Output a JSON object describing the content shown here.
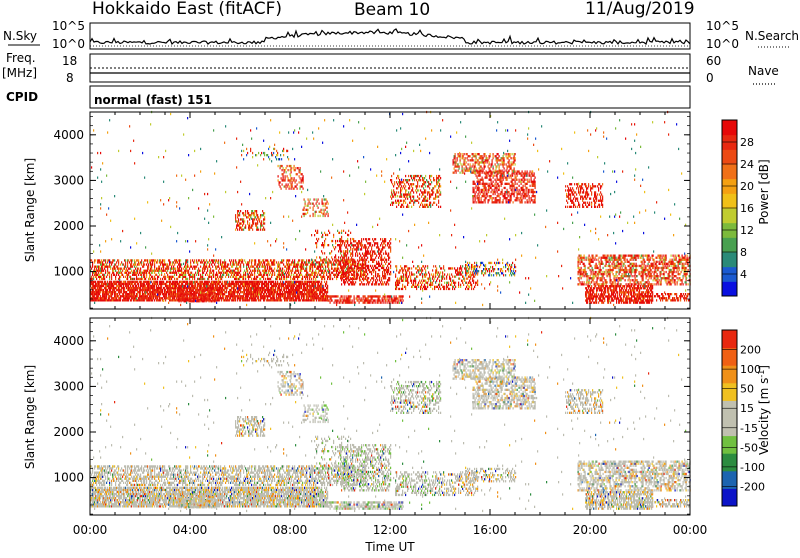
{
  "header": {
    "radar": "Hokkaido East (fitACF)",
    "beam": "Beam 10",
    "date": "11/Aug/2019"
  },
  "top_panels": {
    "nsky_label": "N.Sky",
    "nsearch_label": "N.Search",
    "freq_label": "Freq.",
    "freq_unit": "[MHz]",
    "nave_label": "Nave",
    "cpid_label": "CPID",
    "cpid_value": "normal (fast) 151",
    "noise_ticks": [
      "10^5",
      "10^0"
    ],
    "freq_ticks": [
      "18",
      "8"
    ],
    "nave_ticks": [
      "60",
      "0"
    ]
  },
  "chart_data": [
    {
      "type": "heatmap",
      "name": "power-panel",
      "ylabel": "Slant Range [km]",
      "yticks": [
        1000,
        2000,
        3000,
        4000
      ],
      "ylim": [
        180,
        4500
      ],
      "xlim": [
        0,
        24
      ],
      "colorbar": {
        "label": "Power [dB]",
        "ticks": [
          "4",
          "8",
          "12",
          "16",
          "20",
          "24",
          "28"
        ],
        "colors": [
          "#0a10e0",
          "#1b5ad0",
          "#2a8a78",
          "#48a050",
          "#7cba3c",
          "#c0cc30",
          "#f0c018",
          "#f4a012",
          "#f07018",
          "#ec4a14",
          "#e82810",
          "#e60808"
        ]
      }
    },
    {
      "type": "heatmap",
      "name": "velocity-panel",
      "ylabel": "Slant Range [km]",
      "yticks": [
        1000,
        2000,
        3000,
        4000
      ],
      "ylim": [
        180,
        4500
      ],
      "xlim": [
        0,
        24
      ],
      "xlabel": "Time UT",
      "xticks": [
        "00:00",
        "04:00",
        "08:00",
        "12:00",
        "16:00",
        "20:00",
        "00:00"
      ],
      "colorbar": {
        "label": "Velocity [m s",
        "label_sup": "-1",
        "label_tail": "]",
        "ticks": [
          "200",
          "100",
          "50",
          "15",
          "-15",
          "-50",
          "-100",
          "-200"
        ],
        "colors": [
          "#0c14c8",
          "#1c64b0",
          "#2c8c40",
          "#70c040",
          "#c0c0b0",
          "#c0c0b0",
          "#f0c020",
          "#f09018",
          "#f06014",
          "#e82810"
        ]
      }
    }
  ],
  "colors": {
    "gray_scatter": "#bcbcb0",
    "power_red": "#e81808",
    "velocity_green": "#40b030"
  }
}
